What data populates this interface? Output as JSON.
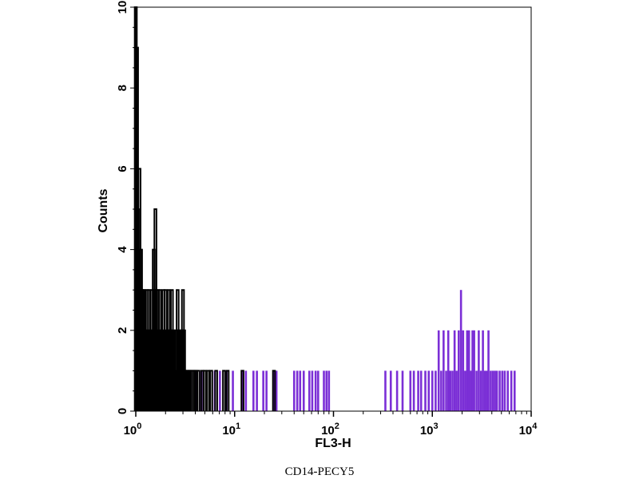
{
  "chart_data": {
    "type": "histogram",
    "xlabel": "FL3-H",
    "ylabel": "Counts",
    "caption": "CD14-PECY5",
    "x_scale": "log",
    "xlim": [
      1,
      10000
    ],
    "ylim": [
      0,
      10
    ],
    "x_ticks": [
      {
        "base": "10",
        "exp": "0"
      },
      {
        "base": "10",
        "exp": "1"
      },
      {
        "base": "10",
        "exp": "2"
      },
      {
        "base": "10",
        "exp": "3"
      },
      {
        "base": "10",
        "exp": "4"
      }
    ],
    "y_ticks": [
      "0",
      "2",
      "4",
      "6",
      "8",
      "10"
    ],
    "grid": false,
    "series": [
      {
        "color": "#7b2fd6",
        "style": "filled",
        "bins": [
          [
            1.02,
            1
          ],
          [
            1.1,
            2
          ],
          [
            1.22,
            1
          ],
          [
            1.45,
            1
          ],
          [
            1.6,
            1
          ],
          [
            1.78,
            1
          ],
          [
            2.0,
            1
          ],
          [
            2.2,
            1
          ],
          [
            2.5,
            1
          ],
          [
            2.8,
            1
          ],
          [
            3.3,
            1
          ],
          [
            3.6,
            1
          ],
          [
            4.1,
            1
          ],
          [
            4.6,
            1
          ],
          [
            5.2,
            1
          ],
          [
            6.3,
            1
          ],
          [
            7.1,
            1
          ],
          [
            8.3,
            1
          ],
          [
            9.6,
            1
          ],
          [
            12.0,
            1
          ],
          [
            13.0,
            1
          ],
          [
            15.5,
            1
          ],
          [
            16.8,
            1
          ],
          [
            19.5,
            1
          ],
          [
            21.0,
            1
          ],
          [
            25.0,
            1
          ],
          [
            26.5,
            1
          ],
          [
            40.0,
            1
          ],
          [
            43.0,
            1
          ],
          [
            46.0,
            1
          ],
          [
            50.0,
            1
          ],
          [
            57.0,
            1
          ],
          [
            61.0,
            1
          ],
          [
            66.0,
            1
          ],
          [
            70.0,
            1
          ],
          [
            80.0,
            1
          ],
          [
            85.0,
            1
          ],
          [
            90.0,
            1
          ],
          [
            335,
            1
          ],
          [
            380,
            1
          ],
          [
            440,
            1
          ],
          [
            500,
            1
          ],
          [
            600,
            1
          ],
          [
            650,
            1
          ],
          [
            720,
            1
          ],
          [
            770,
            1
          ],
          [
            850,
            1
          ],
          [
            920,
            1
          ],
          [
            1000,
            1
          ],
          [
            1080,
            1
          ],
          [
            1160,
            2
          ],
          [
            1230,
            1
          ],
          [
            1300,
            2
          ],
          [
            1380,
            1
          ],
          [
            1450,
            2
          ],
          [
            1520,
            1
          ],
          [
            1600,
            1
          ],
          [
            1680,
            2
          ],
          [
            1760,
            1
          ],
          [
            1850,
            2
          ],
          [
            1950,
            3
          ],
          [
            2050,
            2
          ],
          [
            2150,
            1
          ],
          [
            2250,
            2
          ],
          [
            2350,
            2
          ],
          [
            2450,
            1
          ],
          [
            2550,
            2
          ],
          [
            2650,
            2
          ],
          [
            2800,
            1
          ],
          [
            2950,
            2
          ],
          [
            3100,
            1
          ],
          [
            3250,
            2
          ],
          [
            3400,
            1
          ],
          [
            3550,
            1
          ],
          [
            3700,
            2
          ],
          [
            3900,
            1
          ],
          [
            4100,
            1
          ],
          [
            4300,
            1
          ],
          [
            4500,
            1
          ],
          [
            4800,
            1
          ],
          [
            5100,
            1
          ],
          [
            5400,
            1
          ],
          [
            5800,
            1
          ],
          [
            6300,
            1
          ],
          [
            6800,
            1
          ]
        ]
      },
      {
        "color": "#000000",
        "style": "outline",
        "bins": [
          [
            1.0,
            10
          ],
          [
            1.03,
            9
          ],
          [
            1.05,
            5
          ],
          [
            1.07,
            3
          ],
          [
            1.09,
            6
          ],
          [
            1.11,
            2
          ],
          [
            1.13,
            4
          ],
          [
            1.15,
            3
          ],
          [
            1.17,
            2
          ],
          [
            1.19,
            3
          ],
          [
            1.21,
            2
          ],
          [
            1.23,
            3
          ],
          [
            1.25,
            2
          ],
          [
            1.28,
            1
          ],
          [
            1.3,
            3
          ],
          [
            1.33,
            2
          ],
          [
            1.36,
            3
          ],
          [
            1.39,
            1
          ],
          [
            1.42,
            2
          ],
          [
            1.45,
            3
          ],
          [
            1.48,
            2
          ],
          [
            1.52,
            4
          ],
          [
            1.55,
            3
          ],
          [
            1.58,
            5
          ],
          [
            1.61,
            3
          ],
          [
            1.64,
            2
          ],
          [
            1.68,
            3
          ],
          [
            1.72,
            2
          ],
          [
            1.76,
            3
          ],
          [
            1.8,
            2
          ],
          [
            1.85,
            1
          ],
          [
            1.9,
            3
          ],
          [
            1.95,
            2
          ],
          [
            2.0,
            3
          ],
          [
            2.05,
            1
          ],
          [
            2.1,
            2
          ],
          [
            2.15,
            3
          ],
          [
            2.2,
            2
          ],
          [
            2.26,
            2
          ],
          [
            2.32,
            3
          ],
          [
            2.4,
            2
          ],
          [
            2.48,
            1
          ],
          [
            2.56,
            2
          ],
          [
            2.65,
            3
          ],
          [
            2.74,
            2
          ],
          [
            2.83,
            1
          ],
          [
            2.92,
            2
          ],
          [
            3.0,
            3
          ],
          [
            3.08,
            2
          ],
          [
            3.16,
            1
          ],
          [
            3.3,
            1
          ],
          [
            3.4,
            1
          ],
          [
            3.55,
            1
          ],
          [
            3.7,
            1
          ],
          [
            3.9,
            1
          ],
          [
            4.05,
            1
          ],
          [
            4.3,
            1
          ],
          [
            4.7,
            1
          ],
          [
            5.0,
            1
          ],
          [
            5.4,
            1
          ],
          [
            5.8,
            1
          ],
          [
            6.5,
            1
          ],
          [
            7.8,
            1
          ],
          [
            8.5,
            1
          ],
          [
            12.0,
            1
          ],
          [
            25.0,
            1
          ]
        ]
      }
    ]
  }
}
